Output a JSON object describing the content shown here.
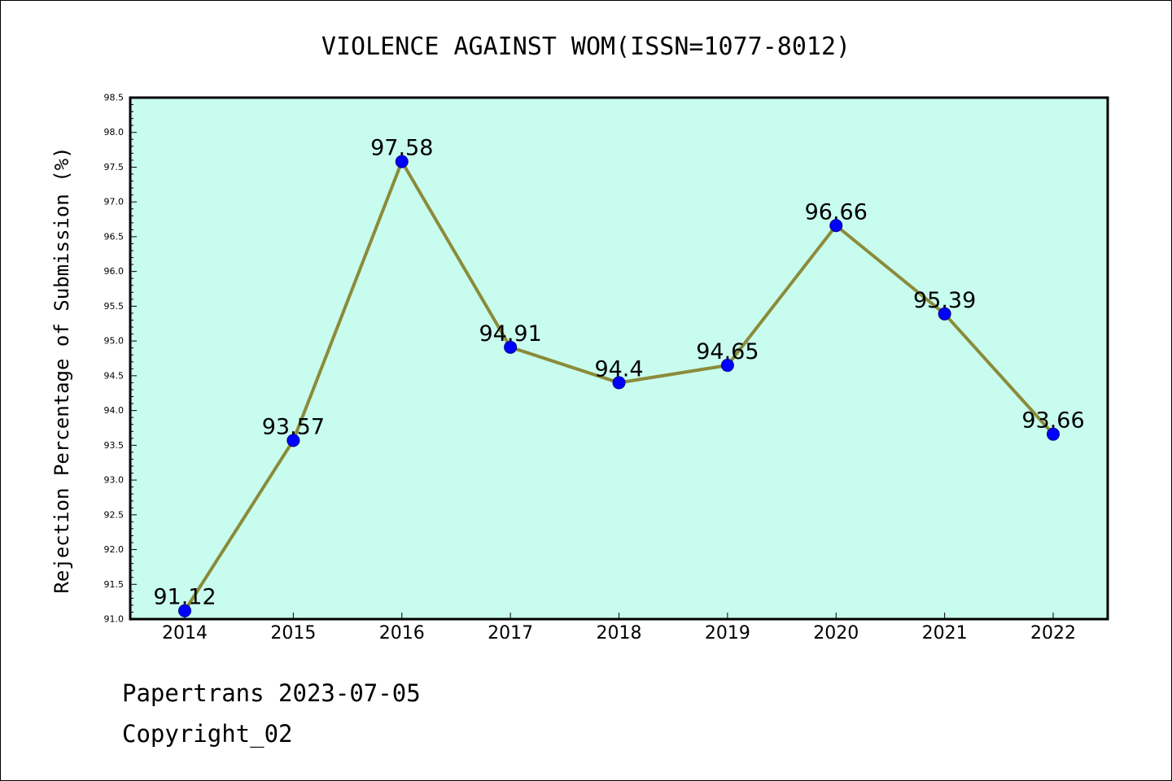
{
  "chart_data": {
    "type": "line",
    "title": "VIOLENCE AGAINST WOM(ISSN=1077-8012)",
    "ylabel": "Rejection Percentage of Submission (%)",
    "xlabel": "",
    "categories": [
      "2014",
      "2015",
      "2016",
      "2017",
      "2018",
      "2019",
      "2020",
      "2021",
      "2022"
    ],
    "series": [
      {
        "values": [
          91.12,
          93.57,
          97.58,
          94.91,
          94.4,
          94.65,
          96.66,
          95.39,
          93.66
        ],
        "data_labels": [
          "91.12",
          "93.57",
          "97.58",
          "94.91",
          "94.4",
          "94.65",
          "96.66",
          "95.39",
          "93.66"
        ],
        "line_color": "#8b8b3a",
        "marker_color": "#0000ff"
      }
    ],
    "ylim": [
      91.0,
      98.5
    ],
    "yticks": [
      "91.0",
      "91.5",
      "92.0",
      "92.5",
      "93.0",
      "93.5",
      "94.0",
      "94.5",
      "95.0",
      "95.5",
      "96.0",
      "96.5",
      "97.0",
      "97.5",
      "98.0",
      "98.5"
    ],
    "plot_background": "#c8fcee",
    "grid": false,
    "legend": "none"
  },
  "footer": {
    "line1": "Papertrans 2023-07-05",
    "line2": "Copyright_02"
  }
}
